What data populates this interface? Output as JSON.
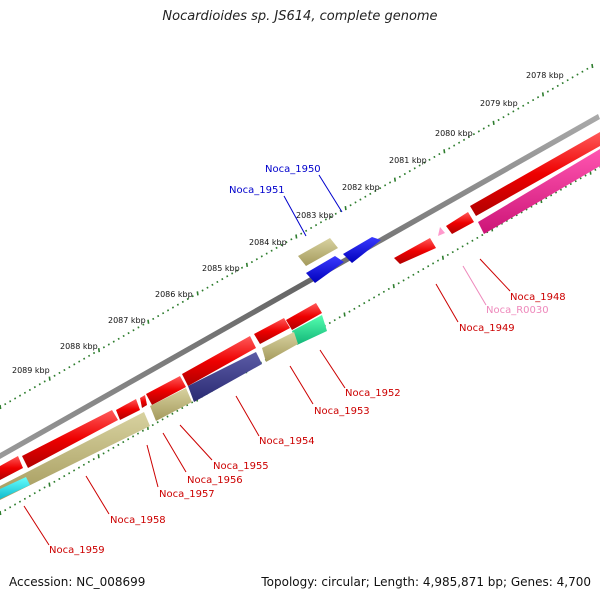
{
  "title": "Nocardioides sp. JS614, complete genome",
  "accession_text": "Accession: NC_008699",
  "topology_text": "Topology: circular; Length: 4,985,871 bp; Genes: 4,700",
  "colors": {
    "backbone": "#777777",
    "tick": "#2e7d2e",
    "label_red": "#cc0000",
    "label_blue": "#0000cc",
    "label_pink": "#ee88bb"
  },
  "kbp_labels": [
    "2078 kbp",
    "2079 kbp",
    "2080 kbp",
    "2081 kbp",
    "2082 kbp",
    "2083 kbp",
    "2084 kbp",
    "2085 kbp",
    "2086 kbp",
    "2087 kbp",
    "2088 kbp",
    "2089 kbp"
  ],
  "gene_labels": [
    {
      "text": "Noca_1950",
      "color": "blue"
    },
    {
      "text": "Noca_1951",
      "color": "blue"
    },
    {
      "text": "Noca_1948",
      "color": "red"
    },
    {
      "text": "Noca_R0030",
      "color": "pink"
    },
    {
      "text": "Noca_1949",
      "color": "red"
    },
    {
      "text": "Noca_1952",
      "color": "red"
    },
    {
      "text": "Noca_1953",
      "color": "red"
    },
    {
      "text": "Noca_1954",
      "color": "red"
    },
    {
      "text": "Noca_1955",
      "color": "red"
    },
    {
      "text": "Noca_1956",
      "color": "red"
    },
    {
      "text": "Noca_1957",
      "color": "red"
    },
    {
      "text": "Noca_1958",
      "color": "red"
    },
    {
      "text": "Noca_1959",
      "color": "red"
    }
  ]
}
